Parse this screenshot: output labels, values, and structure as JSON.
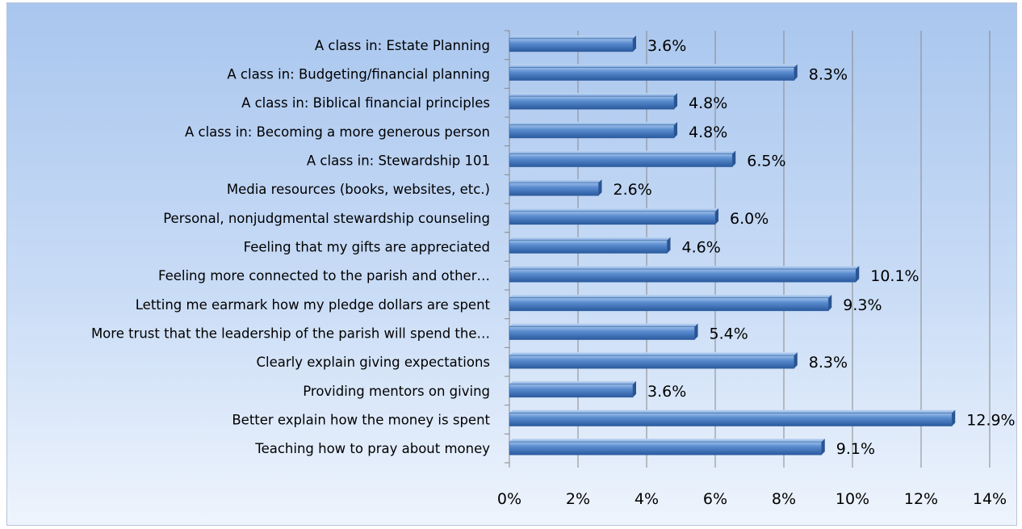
{
  "chart_data": {
    "type": "bar",
    "orientation": "horizontal",
    "categories": [
      "A class in: Estate Planning",
      "A class in: Budgeting/financial planning",
      "A class in: Biblical financial principles",
      "A class in: Becoming a more generous person",
      "A class in: Stewardship 101",
      "Media resources (books, websites, etc.)",
      "Personal, nonjudgmental stewardship counseling",
      "Feeling that my gifts are appreciated",
      "Feeling more connected to the parish and other…",
      "Letting me earmark how my pledge dollars are spent",
      "More trust that the leadership of the parish will spend the…",
      "Clearly explain giving expectations",
      "Providing mentors on giving",
      "Better explain how the money is spent",
      "Teaching how to pray about money"
    ],
    "values": [
      3.6,
      8.3,
      4.8,
      4.8,
      6.5,
      2.6,
      6.0,
      4.6,
      10.1,
      9.3,
      5.4,
      8.3,
      3.6,
      12.9,
      9.1
    ],
    "value_labels": [
      "3.6%",
      "8.3%",
      "4.8%",
      "4.8%",
      "6.5%",
      "2.6%",
      "6.0%",
      "4.6%",
      "10.1%",
      "9.3%",
      "5.4%",
      "8.3%",
      "3.6%",
      "12.9%",
      "9.1%"
    ],
    "x_ticks": [
      "0%",
      "2%",
      "4%",
      "6%",
      "8%",
      "10%",
      "12%",
      "14%"
    ],
    "xlim": [
      0,
      14
    ],
    "unit": "%",
    "grid": true,
    "legend": "none",
    "colors": {
      "bar": "#4f81bd",
      "bar_light": "#8db3e2",
      "bar_dark": "#2a5492",
      "grid": "#888888",
      "background_top": "#a9c6ee",
      "background_bottom": "#eef4fd"
    }
  }
}
